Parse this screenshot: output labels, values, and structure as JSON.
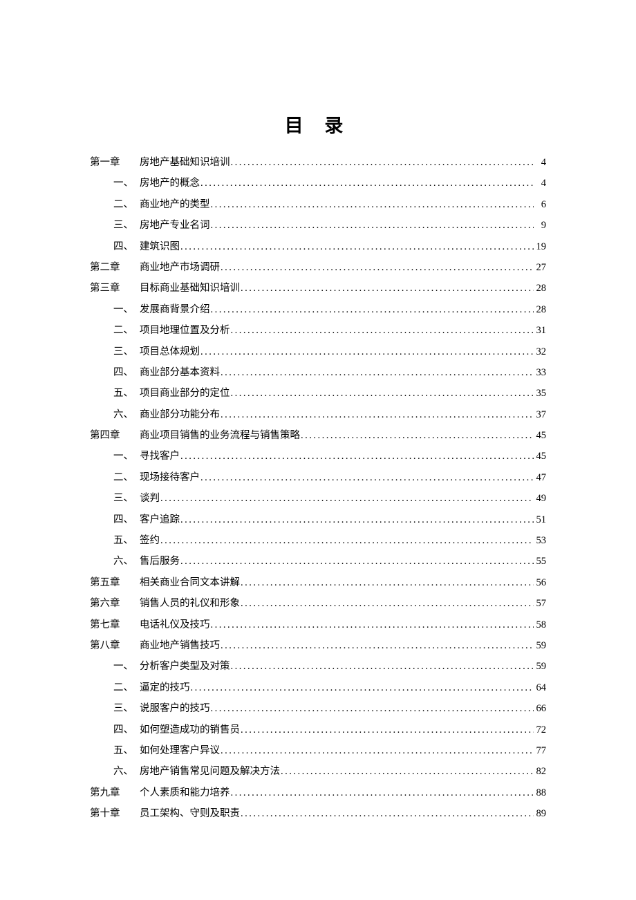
{
  "title": "目 录",
  "title_fontsize": 27,
  "body_fontsize": 14.5,
  "line_height": 30.4,
  "background_color": "#ffffff",
  "text_color": "#000000",
  "entries": [
    {
      "type": "chapter",
      "label": "第一章",
      "text": "房地产基础知识培训",
      "page": "4"
    },
    {
      "type": "section",
      "label": "一、",
      "text": "房地产的概念",
      "page": "4"
    },
    {
      "type": "section",
      "label": "二、",
      "text": "商业地产的类型",
      "page": "6"
    },
    {
      "type": "section",
      "label": "三、",
      "text": "房地产专业名词",
      "page": "9"
    },
    {
      "type": "section",
      "label": "四、",
      "text": "建筑识图",
      "page": "19"
    },
    {
      "type": "chapter",
      "label": "第二章",
      "text": "商业地产市场调研",
      "page": "27"
    },
    {
      "type": "chapter",
      "label": "第三章",
      "text": "目标商业基础知识培训",
      "page": "28"
    },
    {
      "type": "section",
      "label": "一、",
      "text": "发展商背景介绍",
      "page": "28"
    },
    {
      "type": "section",
      "label": "二、",
      "text": "项目地理位置及分析",
      "page": "31"
    },
    {
      "type": "section",
      "label": "三、",
      "text": "项目总体规划",
      "page": "32"
    },
    {
      "type": "section",
      "label": "四、",
      "text": "商业部分基本资料",
      "page": "33"
    },
    {
      "type": "section",
      "label": "五、",
      "text": "项目商业部分的定位",
      "page": "35"
    },
    {
      "type": "section",
      "label": "六、",
      "text": "商业部分功能分布",
      "page": "37"
    },
    {
      "type": "chapter",
      "label": "第四章",
      "text": "商业项目销售的业务流程与销售策略",
      "page": "45"
    },
    {
      "type": "section",
      "label": "一、",
      "text": "寻找客户",
      "page": "45"
    },
    {
      "type": "section",
      "label": "二、",
      "text": "现场接待客户",
      "page": "47"
    },
    {
      "type": "section",
      "label": "三、",
      "text": "谈判",
      "page": "49"
    },
    {
      "type": "section",
      "label": "四、",
      "text": "客户追踪",
      "page": "51"
    },
    {
      "type": "section",
      "label": "五、",
      "text": "签约",
      "page": "53"
    },
    {
      "type": "section",
      "label": "六、",
      "text": "售后服务",
      "page": "55"
    },
    {
      "type": "chapter",
      "label": "第五章",
      "text": "相关商业合同文本讲解",
      "page": "56"
    },
    {
      "type": "chapter",
      "label": "第六章",
      "text": "销售人员的礼仪和形象",
      "page": "57"
    },
    {
      "type": "chapter",
      "label": "第七章",
      "text": "电话礼仪及技巧",
      "page": "58"
    },
    {
      "type": "chapter",
      "label": "第八章",
      "text": "商业地产销售技巧",
      "page": "59"
    },
    {
      "type": "section",
      "label": "一、",
      "text": "分析客户类型及对策",
      "page": "59"
    },
    {
      "type": "section",
      "label": "二、",
      "text": "逼定的技巧",
      "page": "64"
    },
    {
      "type": "section",
      "label": "三、",
      "text": "说服客户的技巧",
      "page": "66"
    },
    {
      "type": "section",
      "label": "四、",
      "text": "如何塑造成功的销售员",
      "page": "72"
    },
    {
      "type": "section",
      "label": "五、",
      "text": "如何处理客户异议",
      "page": "77"
    },
    {
      "type": "section",
      "label": "六、",
      "text": "房地产销售常见问题及解决方法",
      "page": "82"
    },
    {
      "type": "chapter",
      "label": "第九章",
      "text": "个人素质和能力培养",
      "page": "88"
    },
    {
      "type": "chapter",
      "label": "第十章",
      "text": "员工架构、守则及职责",
      "page": "89"
    }
  ]
}
